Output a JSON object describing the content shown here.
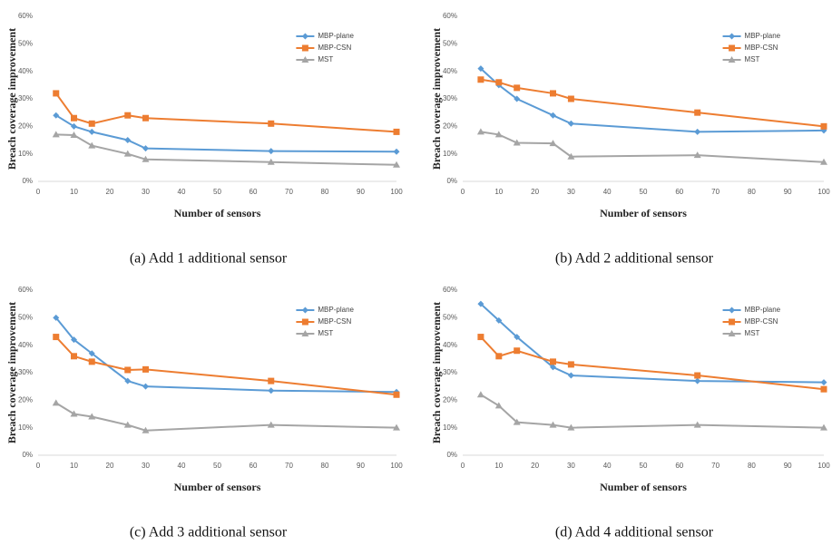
{
  "chart_data": [
    {
      "type": "line",
      "caption": "(a) Add 1 additional sensor",
      "x_label": "Number of sensors",
      "y_label": "Breach coverage improvement",
      "x": [
        5,
        10,
        15,
        25,
        30,
        65,
        100
      ],
      "xlim": [
        0,
        100
      ],
      "xticks": [
        0,
        10,
        20,
        30,
        40,
        50,
        60,
        70,
        80,
        90,
        100
      ],
      "ylim": [
        0,
        60
      ],
      "yticks": [
        {
          "value": 0,
          "label": "0%"
        },
        {
          "value": 10,
          "label": "10%"
        },
        {
          "value": 20,
          "label": "20%"
        },
        {
          "value": 30,
          "label": "30%"
        },
        {
          "value": 40,
          "label": "40%"
        },
        {
          "value": 50,
          "label": "50%"
        },
        {
          "value": 60,
          "label": "60%"
        }
      ],
      "series": [
        {
          "name": "MBP-plane",
          "color": "#5b9bd5",
          "marker": "diamond",
          "values": [
            24,
            20,
            18,
            15,
            12,
            11,
            10.8
          ]
        },
        {
          "name": "MBP-CSN",
          "color": "#ed7d31",
          "marker": "square",
          "values": [
            32,
            23,
            21,
            24,
            23,
            21,
            18
          ]
        },
        {
          "name": "MST",
          "color": "#a5a5a5",
          "marker": "triangle",
          "values": [
            17,
            16.8,
            13,
            10,
            8,
            7,
            6
          ]
        }
      ]
    },
    {
      "type": "line",
      "caption": "(b) Add 2 additional sensor",
      "x_label": "Number of sensors",
      "y_label": "Breach coverage improvement",
      "x": [
        5,
        10,
        15,
        25,
        30,
        65,
        100
      ],
      "xlim": [
        0,
        100
      ],
      "xticks": [
        0,
        10,
        20,
        30,
        40,
        50,
        60,
        70,
        80,
        90,
        100
      ],
      "ylim": [
        0,
        60
      ],
      "yticks": [
        {
          "value": 0,
          "label": "0%"
        },
        {
          "value": 10,
          "label": "10%"
        },
        {
          "value": 20,
          "label": "20%"
        },
        {
          "value": 30,
          "label": "30%"
        },
        {
          "value": 40,
          "label": "40%"
        },
        {
          "value": 50,
          "label": "50%"
        },
        {
          "value": 60,
          "label": "60%"
        }
      ],
      "series": [
        {
          "name": "MBP-plane",
          "color": "#5b9bd5",
          "marker": "diamond",
          "values": [
            41,
            35,
            30,
            24,
            21,
            18,
            18.5
          ]
        },
        {
          "name": "MBP-CSN",
          "color": "#ed7d31",
          "marker": "square",
          "values": [
            37,
            36,
            34,
            32,
            30,
            25,
            20
          ]
        },
        {
          "name": "MST",
          "color": "#a5a5a5",
          "marker": "triangle",
          "values": [
            18,
            17,
            14,
            13.8,
            9,
            9.5,
            7
          ]
        }
      ]
    },
    {
      "type": "line",
      "caption": "(c) Add 3 additional sensor",
      "x_label": "Number of sensors",
      "y_label": "Breach coverage improvement",
      "x": [
        5,
        10,
        15,
        25,
        30,
        65,
        100
      ],
      "xlim": [
        0,
        100
      ],
      "xticks": [
        0,
        10,
        20,
        30,
        40,
        50,
        60,
        70,
        80,
        90,
        100
      ],
      "ylim": [
        0,
        60
      ],
      "yticks": [
        {
          "value": 0,
          "label": "0%"
        },
        {
          "value": 10,
          "label": "10%"
        },
        {
          "value": 20,
          "label": "20%"
        },
        {
          "value": 30,
          "label": "30%"
        },
        {
          "value": 40,
          "label": "40%"
        },
        {
          "value": 50,
          "label": "50%"
        },
        {
          "value": 60,
          "label": "60%"
        }
      ],
      "series": [
        {
          "name": "MBP-plane",
          "color": "#5b9bd5",
          "marker": "diamond",
          "values": [
            50,
            42,
            37,
            27,
            25,
            23.5,
            23
          ]
        },
        {
          "name": "MBP-CSN",
          "color": "#ed7d31",
          "marker": "square",
          "values": [
            43,
            36,
            34,
            31,
            31.2,
            27,
            22
          ]
        },
        {
          "name": "MST",
          "color": "#a5a5a5",
          "marker": "triangle",
          "values": [
            19,
            15,
            14,
            11,
            9,
            11,
            10
          ]
        }
      ]
    },
    {
      "type": "line",
      "caption": "(d) Add 4 additional sensor",
      "x_label": "Number of sensors",
      "y_label": "Breach coverage improvement",
      "x": [
        5,
        10,
        15,
        25,
        30,
        65,
        100
      ],
      "xlim": [
        0,
        100
      ],
      "xticks": [
        0,
        10,
        20,
        30,
        40,
        50,
        60,
        70,
        80,
        90,
        100
      ],
      "ylim": [
        0,
        60
      ],
      "yticks": [
        {
          "value": 0,
          "label": "0%"
        },
        {
          "value": 10,
          "label": "10%"
        },
        {
          "value": 20,
          "label": "20%"
        },
        {
          "value": 30,
          "label": "30%"
        },
        {
          "value": 40,
          "label": "40%"
        },
        {
          "value": 50,
          "label": "50%"
        },
        {
          "value": 60,
          "label": "60%"
        }
      ],
      "series": [
        {
          "name": "MBP-plane",
          "color": "#5b9bd5",
          "marker": "diamond",
          "values": [
            55,
            49,
            43,
            32,
            29,
            27,
            26.5
          ]
        },
        {
          "name": "MBP-CSN",
          "color": "#ed7d31",
          "marker": "square",
          "values": [
            43,
            36,
            38,
            34,
            33,
            29,
            24
          ]
        },
        {
          "name": "MST",
          "color": "#a5a5a5",
          "marker": "triangle",
          "values": [
            22,
            18,
            12,
            11,
            10,
            11,
            10
          ]
        }
      ]
    }
  ]
}
